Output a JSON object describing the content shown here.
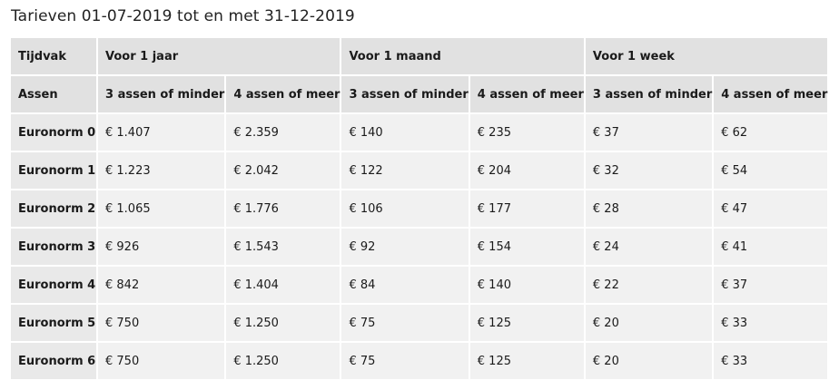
{
  "title": "Tarieven 01-07-2019 tot en met 31-12-2019",
  "header": {
    "row_label": "Tijdvak",
    "periods": [
      "Voor 1 jaar",
      "Voor 1 maand",
      "Voor 1 week"
    ]
  },
  "subheader": {
    "row_label": "Assen",
    "cols": [
      "3 assen of minder",
      "4 assen of meer",
      "3 assen of minder",
      "4 assen of meer",
      "3 assen of minder",
      "4 assen of meer"
    ]
  },
  "rows": [
    {
      "label": "Euronorm 0",
      "values": [
        "€ 1.407",
        "€ 2.359",
        "€ 140",
        "€ 235",
        "€ 37",
        "€ 62"
      ]
    },
    {
      "label": "Euronorm 1",
      "values": [
        "€ 1.223",
        "€ 2.042",
        "€ 122",
        "€ 204",
        "€ 32",
        "€ 54"
      ]
    },
    {
      "label": "Euronorm 2",
      "values": [
        "€ 1.065",
        "€ 1.776",
        "€ 106",
        "€ 177",
        "€ 28",
        "€ 47"
      ]
    },
    {
      "label": "Euronorm 3",
      "values": [
        "€ 926",
        "€ 1.543",
        "€ 92",
        "€ 154",
        "€ 24",
        "€ 41"
      ]
    },
    {
      "label": "Euronorm 4",
      "values": [
        "€ 842",
        "€ 1.404",
        "€ 84",
        "€ 140",
        "€ 22",
        "€ 37"
      ]
    },
    {
      "label": "Euronorm 5",
      "values": [
        "€ 750",
        "€ 1.250",
        "€ 75",
        "€ 125",
        "€ 20",
        "€ 33"
      ]
    },
    {
      "label": "Euronorm 6",
      "values": [
        "€ 750",
        "€ 1.250",
        "€ 75",
        "€ 125",
        "€ 20",
        "€ 33"
      ]
    }
  ]
}
